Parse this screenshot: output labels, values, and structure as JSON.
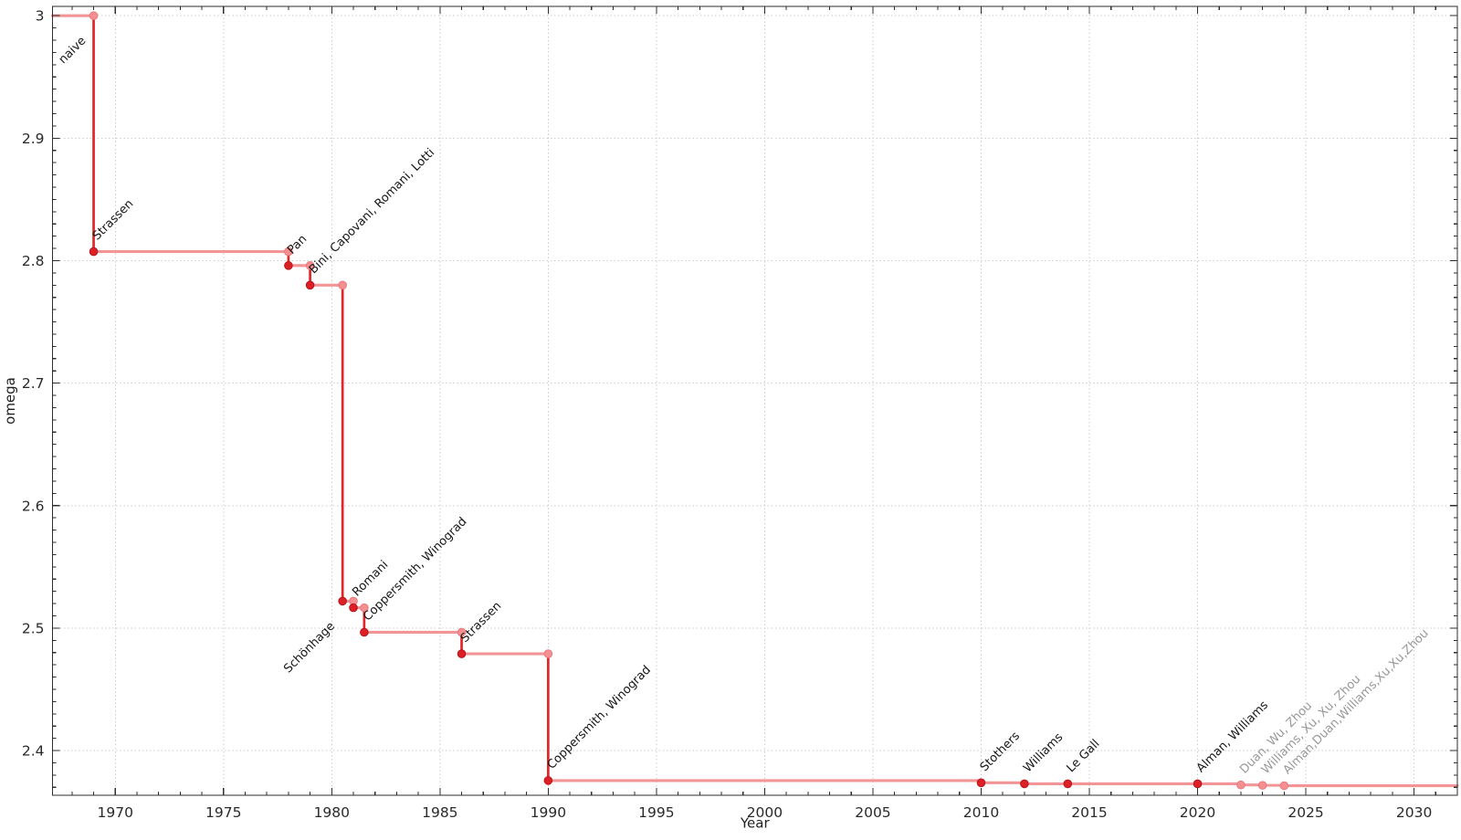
{
  "chart_data": {
    "type": "line",
    "subtype": "step-post",
    "title": "",
    "xlabel": "Year",
    "ylabel": "omega",
    "grid": true,
    "legend": "none",
    "xlim": [
      1967.1,
      2032.0
    ],
    "ylim": [
      2.3635,
      3.0076
    ],
    "x_major_ticks": [
      1970,
      1975,
      1980,
      1985,
      1990,
      1995,
      2000,
      2005,
      2010,
      2015,
      2020,
      2025,
      2030
    ],
    "x_minor_tick_step_years": 1,
    "y_major_ticks": [
      2.4,
      2.5,
      2.6,
      2.7,
      2.8,
      2.9,
      3.0
    ],
    "y_major_tick_labels": [
      "2.4",
      "2.5",
      "2.6",
      "2.7",
      "2.8",
      "2.9",
      "3"
    ],
    "y_minor_tick_step": 0.01,
    "points": [
      {
        "year": 1969,
        "omega": 3.0,
        "label": "naive",
        "marker": "light",
        "corner_marker": false,
        "label_color": "#161616",
        "label_placement": "below-left"
      },
      {
        "year": 1969,
        "omega": 2.8074,
        "label": "Strassen",
        "marker": "dark",
        "corner_marker": false,
        "label_color": "#161616",
        "label_placement": "above-right"
      },
      {
        "year": 1978,
        "omega": 2.796,
        "label": "Pan",
        "marker": "dark",
        "corner_marker": true,
        "label_color": "#161616",
        "label_placement": "above-right"
      },
      {
        "year": 1979,
        "omega": 2.78,
        "label": "Bini, Capovani, Romani, Lotti",
        "marker": "dark",
        "corner_marker": true,
        "label_color": "#161616",
        "label_placement": "above-right"
      },
      {
        "year": 1980.5,
        "omega": 2.522,
        "label": "Schönhage",
        "marker": "dark",
        "corner_marker": true,
        "label_color": "#161616",
        "label_placement": "below-left"
      },
      {
        "year": 1981,
        "omega": 2.5166,
        "label": "Romani",
        "marker": "dark",
        "corner_marker": true,
        "label_color": "#161616",
        "label_placement": "above-right"
      },
      {
        "year": 1981.5,
        "omega": 2.4966,
        "label": "Coppersmith, Winograd",
        "marker": "dark",
        "corner_marker": true,
        "label_color": "#161616",
        "label_placement": "above-right"
      },
      {
        "year": 1986,
        "omega": 2.479,
        "label": "Strassen",
        "marker": "dark",
        "corner_marker": true,
        "label_color": "#161616",
        "label_placement": "above-right"
      },
      {
        "year": 1990,
        "omega": 2.3755,
        "label": "Coppersmith, Winograd",
        "marker": "dark",
        "corner_marker": true,
        "label_color": "#161616",
        "label_placement": "above-right"
      },
      {
        "year": 2010,
        "omega": 2.3737,
        "label": "Stothers",
        "marker": "dark",
        "corner_marker": false,
        "label_color": "#161616",
        "label_placement": "above-right"
      },
      {
        "year": 2012,
        "omega": 2.37288,
        "label": "Williams",
        "marker": "dark",
        "corner_marker": false,
        "label_color": "#161616",
        "label_placement": "above-right"
      },
      {
        "year": 2014,
        "omega": 2.37287,
        "label": "Le Gall",
        "marker": "dark",
        "corner_marker": false,
        "label_color": "#161616",
        "label_placement": "above-right"
      },
      {
        "year": 2020,
        "omega": 2.37286,
        "label": "Alman, Williams",
        "marker": "dark",
        "corner_marker": false,
        "label_color": "#161616",
        "label_placement": "above-right"
      },
      {
        "year": 2022,
        "omega": 2.3719,
        "label": "Duan, Wu, Zhou",
        "marker": "light",
        "corner_marker": false,
        "label_color": "#989898",
        "label_placement": "above-right"
      },
      {
        "year": 2023,
        "omega": 2.3716,
        "label": "Williams, Xu, Xu, Zhou",
        "marker": "light",
        "corner_marker": false,
        "label_color": "#989898",
        "label_placement": "above-right"
      },
      {
        "year": 2024,
        "omega": 2.3713,
        "label": "Alman,Duan,Williams,Xu,Xu,Zhou",
        "marker": "light",
        "corner_marker": false,
        "label_color": "#989898",
        "label_placement": "above-right"
      }
    ],
    "colors": {
      "line_horizontal": "#f39496",
      "line_vertical": "#e22629",
      "marker_dark_fill": "#dc2026",
      "marker_dark_edge": "#b8151b",
      "marker_light_fill": "#f58f91",
      "marker_light_edge": "#ea797c",
      "grid": "#cdcdcd",
      "spine": "#2e2e2e",
      "tick_label": "#2a2a2a",
      "axis_title": "#1f1f1f",
      "background": "#ffffff"
    }
  }
}
